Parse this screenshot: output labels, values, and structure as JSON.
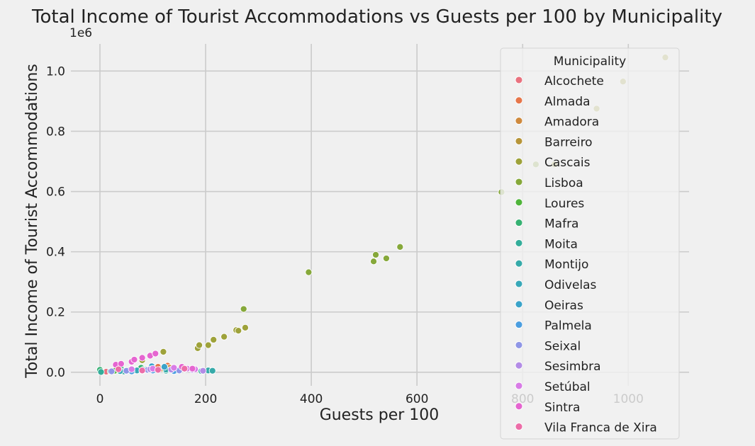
{
  "chart_data": {
    "type": "scatter",
    "title": "Total Income of Tourist Accommodations vs Guests per 100 by Municipality",
    "xlabel": "Guests per 100",
    "ylabel": "Total Income of Tourist Accommodations",
    "y_scale_label": "1e6",
    "xlim": [
      -55,
      1115
    ],
    "ylim": [
      -45000,
      1090000
    ],
    "x_ticks": [
      0,
      200,
      400,
      600,
      800,
      1000
    ],
    "x_tick_labels": [
      "0",
      "200",
      "400",
      "600",
      "800",
      "1000"
    ],
    "y_ticks": [
      0,
      200000,
      400000,
      600000,
      800000,
      1000000
    ],
    "y_tick_labels": [
      "0.0",
      "0.2",
      "0.4",
      "0.6",
      "0.8",
      "1.0"
    ],
    "grid": true,
    "legend": {
      "title": "Municipality",
      "position": "upper right"
    },
    "series": [
      {
        "name": "Alcochete",
        "color": "#e9727f",
        "points": [
          [
            12,
            2000
          ],
          [
            40,
            4000
          ],
          [
            65,
            5000
          ]
        ]
      },
      {
        "name": "Almada",
        "color": "#e6764a",
        "points": [
          [
            60,
            12000
          ],
          [
            95,
            15000
          ],
          [
            110,
            18000
          ],
          [
            128,
            22000
          ]
        ]
      },
      {
        "name": "Amadora",
        "color": "#cf8a3e",
        "points": [
          [
            48,
            6000
          ],
          [
            70,
            8000
          ],
          [
            118,
            12000
          ],
          [
            132,
            15000
          ]
        ]
      },
      {
        "name": "Barreiro",
        "color": "#b79539",
        "points": [
          [
            45,
            4000
          ],
          [
            62,
            6000
          ],
          [
            85,
            9000
          ]
        ]
      },
      {
        "name": "Cascais",
        "color": "#9ea23a",
        "points": [
          [
            80,
            40000
          ],
          [
            120,
            68000
          ],
          [
            185,
            80000
          ],
          [
            188,
            90000
          ],
          [
            205,
            90000
          ],
          [
            215,
            108000
          ],
          [
            235,
            118000
          ],
          [
            258,
            140000
          ],
          [
            262,
            138000
          ],
          [
            275,
            148000
          ],
          [
            860,
            690000
          ],
          [
            940,
            875000
          ],
          [
            990,
            965000
          ],
          [
            1070,
            1045000
          ]
        ]
      },
      {
        "name": "Lisboa",
        "color": "#86a83a",
        "points": [
          [
            272,
            210000
          ],
          [
            395,
            332000
          ],
          [
            518,
            368000
          ],
          [
            522,
            390000
          ],
          [
            542,
            378000
          ],
          [
            568,
            416000
          ],
          [
            760,
            598000
          ],
          [
            825,
            690000
          ]
        ]
      },
      {
        "name": "Loures",
        "color": "#4fb43a",
        "points": [
          [
            28,
            5000
          ],
          [
            55,
            7000
          ],
          [
            88,
            10000
          ]
        ]
      },
      {
        "name": "Mafra",
        "color": "#36b172",
        "points": [
          [
            0,
            8000
          ],
          [
            40,
            12000
          ],
          [
            78,
            15000
          ]
        ]
      },
      {
        "name": "Moita",
        "color": "#34ad9a",
        "points": [
          [
            2,
            1000
          ],
          [
            45,
            3000
          ],
          [
            125,
            5000
          ],
          [
            145,
            6000
          ],
          [
            192,
            4000
          ]
        ]
      },
      {
        "name": "Montijo",
        "color": "#36aaa9",
        "points": [
          [
            20,
            3000
          ],
          [
            82,
            8000
          ],
          [
            125,
            9000
          ],
          [
            205,
            6000
          ],
          [
            213,
            5000
          ]
        ]
      },
      {
        "name": "Odivelas",
        "color": "#38a8b8",
        "points": [
          [
            38,
            4000
          ],
          [
            70,
            6000
          ],
          [
            90,
            8000
          ]
        ]
      },
      {
        "name": "Oeiras",
        "color": "#3aa3c9",
        "points": [
          [
            98,
            20000
          ],
          [
            122,
            18000
          ],
          [
            140,
            12000
          ],
          [
            160,
            10000
          ]
        ]
      },
      {
        "name": "Palmela",
        "color": "#4b9ee0",
        "points": [
          [
            60,
            3000
          ],
          [
            80,
            5000
          ],
          [
            100,
            6000
          ],
          [
            140,
            4000
          ]
        ]
      },
      {
        "name": "Seixal",
        "color": "#8f96e6",
        "points": [
          [
            22,
            3000
          ],
          [
            50,
            5000
          ],
          [
            90,
            8000
          ],
          [
            150,
            6000
          ]
        ]
      },
      {
        "name": "Sesimbra",
        "color": "#b38ce6",
        "points": [
          [
            95,
            10000
          ],
          [
            135,
            9000
          ],
          [
            175,
            8000
          ],
          [
            195,
            5000
          ]
        ]
      },
      {
        "name": "Setúbal",
        "color": "#d87ce6",
        "points": [
          [
            60,
            10000
          ],
          [
            100,
            12000
          ],
          [
            140,
            15000
          ],
          [
            165,
            12000
          ],
          [
            180,
            10000
          ]
        ]
      },
      {
        "name": "Sintra",
        "color": "#e565d0",
        "points": [
          [
            30,
            25000
          ],
          [
            40,
            28000
          ],
          [
            60,
            35000
          ],
          [
            65,
            42000
          ],
          [
            80,
            48000
          ],
          [
            95,
            55000
          ],
          [
            105,
            62000
          ],
          [
            155,
            18000
          ],
          [
            175,
            12000
          ]
        ]
      },
      {
        "name": "Vila Franca de Xira",
        "color": "#ec6da8",
        "points": [
          [
            35,
            10000
          ],
          [
            80,
            6000
          ],
          [
            110,
            8000
          ],
          [
            160,
            12000
          ]
        ]
      }
    ]
  }
}
